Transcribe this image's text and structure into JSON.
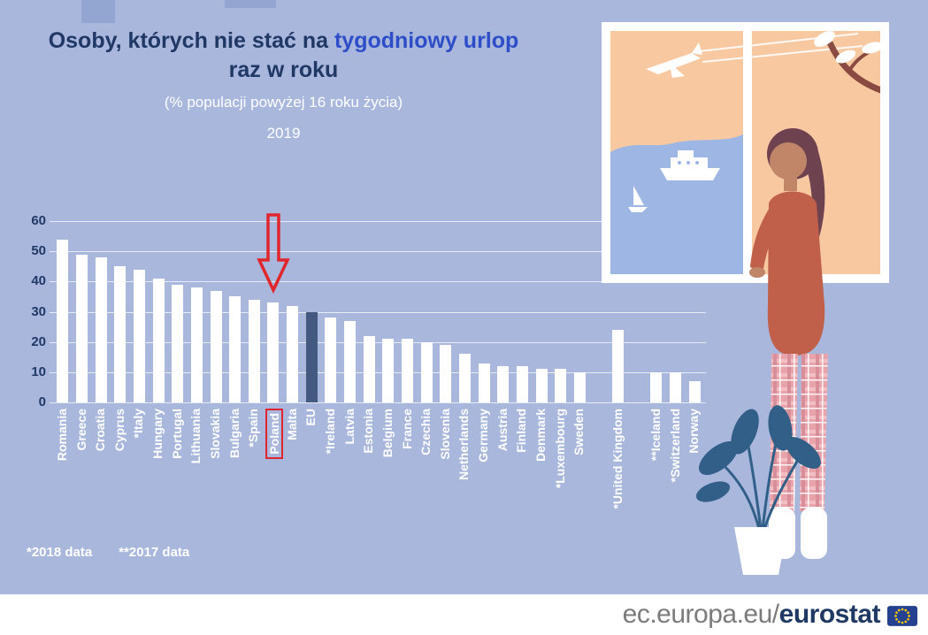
{
  "title": {
    "line1_prefix": "Osoby, których nie stać na",
    "line1_highlight": "tygodniowy urlop",
    "line2": "raz w roku",
    "subtitle": "(% populacji powyżej 16 roku życia)",
    "year": "2019"
  },
  "footnotes": {
    "note_2018": "*2018 data",
    "note_2017": "**2017 data"
  },
  "footer": {
    "url_regular": "ec.europa.eu/",
    "url_bold": "eurostat"
  },
  "icons": {
    "annotation_arrow": "red-down-arrow-icon",
    "eu_flag": "eu-flag-icon"
  },
  "colors": {
    "background": "#a8b7db",
    "title_navy": "#1f3864",
    "title_highlight_blue": "#2d4ec8",
    "bar_white": "#ffffff",
    "bar_highlight": "#44597f",
    "annotation_red": "#e0262c",
    "axis_text": "#1f3864",
    "label_white": "#ffffff",
    "footer_gray": "#7b7b7b"
  },
  "chart_data": {
    "type": "bar",
    "title": "Osoby, których nie stać na tygodniowy urlop raz w roku",
    "subtitle": "(% populacji powyżej 16 roku życia)",
    "year": "2019",
    "xlabel": "",
    "ylabel": "",
    "ylim": [
      0,
      60
    ],
    "yticks": [
      0,
      10,
      20,
      30,
      40,
      50,
      60
    ],
    "grid": true,
    "legend": false,
    "categories": [
      "Romania",
      "Greece",
      "Croatia",
      "Cyprus",
      "*Italy",
      "Hungary",
      "Portugal",
      "Lithuania",
      "Slovakia",
      "Bulgaria",
      "*Spain",
      "Poland",
      "Malta",
      "EU",
      "*Ireland",
      "Latvia",
      "Estonia",
      "Belgium",
      "France",
      "Czechia",
      "Slovenia",
      "Netherlands",
      "Germany",
      "Austria",
      "Finland",
      "Denmark",
      "*Luxembourg",
      "Sweden",
      "*United Kingdom",
      "**Iceland",
      "*Switzerland",
      "Norway"
    ],
    "values": [
      54,
      49,
      48,
      45,
      44,
      41,
      39,
      38,
      37,
      35,
      34,
      33,
      32,
      30,
      28,
      27,
      22,
      21,
      21,
      20,
      19,
      16,
      13,
      12,
      12,
      11,
      11,
      10,
      24,
      10,
      10,
      7
    ],
    "highlight_category": "EU",
    "annotated_category": "Poland",
    "gaps_after": [
      "Sweden",
      "*United Kingdom"
    ]
  }
}
